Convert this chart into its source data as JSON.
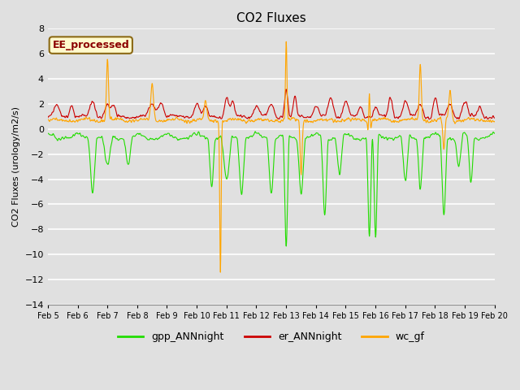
{
  "title": "CO2 Fluxes",
  "ylabel": "CO2 Fluxes (urology/m2/s)",
  "ylim": [
    -14,
    8
  ],
  "yticks": [
    -14,
    -12,
    -10,
    -8,
    -6,
    -4,
    -2,
    0,
    2,
    4,
    6,
    8
  ],
  "date_labels": [
    "Feb 5",
    "Feb 6",
    "Feb 7",
    "Feb 8",
    "Feb 9",
    "Feb 10",
    "Feb 11",
    "Feb 12",
    "Feb 13",
    "Feb 14",
    "Feb 15",
    "Feb 16",
    "Feb 17",
    "Feb 18",
    "Feb 19",
    "Feb 20"
  ],
  "annotation_text": "EE_processed",
  "annotation_color": "#8B0000",
  "annotation_bg": "#FFFACD",
  "annotation_border": "#8B6914",
  "gpp_color": "#22DD00",
  "er_color": "#CC0000",
  "wc_color": "#FFA500",
  "line_width": 0.8,
  "bg_color": "#E0E0E0",
  "plot_bg": "#E0E0E0",
  "legend_labels": [
    "gpp_ANNnight",
    "er_ANNnight",
    "wc_gf"
  ],
  "title_fontsize": 11,
  "n_days": 15,
  "pts_per_day": 96
}
